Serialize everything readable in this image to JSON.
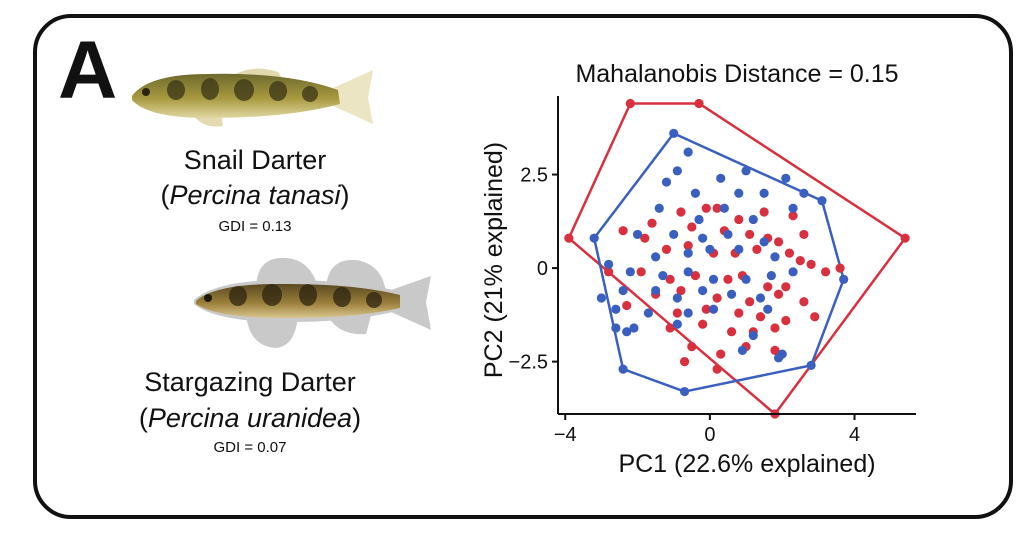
{
  "panel": {
    "label": "A"
  },
  "species": [
    {
      "common_name": "Snail Darter",
      "scientific_name": "Percina tanasi",
      "gdi": "GDI = 0.13"
    },
    {
      "common_name": "Stargazing Darter",
      "scientific_name": "Percina uranidea",
      "gdi": "GDI = 0.07"
    }
  ],
  "colors": {
    "snail": "#d8303f",
    "stargazing": "#3a5fbf"
  },
  "chart_data": {
    "type": "scatter",
    "title": "Mahalanobis Distance = 0.15",
    "xlabel": "PC1 (22.6% explained)",
    "ylabel": "PC2 (21% explained)",
    "xlim": [
      -4.2,
      5.7
    ],
    "ylim": [
      -3.9,
      4.6
    ],
    "x_ticks": [
      -4,
      0,
      4
    ],
    "x_tick_labels": [
      "−4",
      "0",
      "4"
    ],
    "y_ticks": [
      2.5,
      0,
      -2.5
    ],
    "y_tick_labels": [
      "2.5",
      "0",
      "−2.5"
    ],
    "grid": false,
    "series": [
      {
        "name": "Snail Darter",
        "color": "#d8303f",
        "hull": [
          [
            -2.2,
            4.4
          ],
          [
            -0.3,
            4.4
          ],
          [
            5.4,
            0.8
          ],
          [
            1.8,
            -3.9
          ],
          [
            -3.9,
            0.8
          ]
        ],
        "points": [
          [
            -2.2,
            4.4
          ],
          [
            -0.3,
            4.4
          ],
          [
            5.4,
            0.8
          ],
          [
            1.8,
            -3.9
          ],
          [
            -3.9,
            0.8
          ],
          [
            -0.8,
            1.5
          ],
          [
            -0.1,
            1.6
          ],
          [
            0.2,
            1.6
          ],
          [
            0.8,
            1.3
          ],
          [
            1.5,
            1.5
          ],
          [
            2.3,
            1.4
          ],
          [
            -1.6,
            1.2
          ],
          [
            -2.4,
            1.0
          ],
          [
            -1.8,
            0.8
          ],
          [
            -0.5,
            1.1
          ],
          [
            0.4,
            1.0
          ],
          [
            1.1,
            0.9
          ],
          [
            1.6,
            0.8
          ],
          [
            1.9,
            0.7
          ],
          [
            2.6,
            0.9
          ],
          [
            -1.2,
            0.5
          ],
          [
            -0.6,
            0.6
          ],
          [
            0.1,
            0.4
          ],
          [
            0.7,
            0.4
          ],
          [
            1.3,
            0.5
          ],
          [
            2.2,
            0.4
          ],
          [
            2.5,
            0.2
          ],
          [
            2.8,
            0.1
          ],
          [
            3.2,
            -0.1
          ],
          [
            3.6,
            0.0
          ],
          [
            -2.8,
            -0.1
          ],
          [
            -1.9,
            -0.1
          ],
          [
            -1.1,
            -0.3
          ],
          [
            -0.4,
            -0.2
          ],
          [
            0.5,
            -0.3
          ],
          [
            0.9,
            -0.2
          ],
          [
            1.6,
            -0.5
          ],
          [
            2.1,
            -0.5
          ],
          [
            -1.5,
            -0.7
          ],
          [
            -0.8,
            -0.6
          ],
          [
            0.2,
            -0.8
          ],
          [
            1.1,
            -0.9
          ],
          [
            1.9,
            -0.7
          ],
          [
            2.6,
            -0.9
          ],
          [
            -2.3,
            -1.0
          ],
          [
            -0.9,
            -1.2
          ],
          [
            -0.1,
            -1.1
          ],
          [
            0.8,
            -1.2
          ],
          [
            1.4,
            -1.3
          ],
          [
            2.1,
            -1.4
          ],
          [
            2.9,
            -1.3
          ],
          [
            -1.1,
            -1.6
          ],
          [
            -0.2,
            -1.5
          ],
          [
            0.6,
            -1.7
          ],
          [
            1.2,
            -1.7
          ],
          [
            1.8,
            -1.6
          ],
          [
            -0.5,
            -2.1
          ],
          [
            0.3,
            -2.3
          ],
          [
            1.0,
            -2.1
          ],
          [
            1.8,
            -2.2
          ],
          [
            0.2,
            -2.7
          ],
          [
            -0.7,
            -2.5
          ]
        ]
      },
      {
        "name": "Stargazing Darter",
        "color": "#3a5fbf",
        "hull": [
          [
            -1.0,
            3.6
          ],
          [
            3.1,
            1.8
          ],
          [
            3.7,
            -0.3
          ],
          [
            2.8,
            -2.6
          ],
          [
            -0.7,
            -3.3
          ],
          [
            -2.4,
            -2.7
          ],
          [
            -3.2,
            0.8
          ]
        ],
        "points": [
          [
            -1.0,
            3.6
          ],
          [
            3.1,
            1.8
          ],
          [
            3.7,
            -0.3
          ],
          [
            2.8,
            -2.6
          ],
          [
            -0.7,
            -3.3
          ],
          [
            -2.4,
            -2.7
          ],
          [
            -3.2,
            0.8
          ],
          [
            -0.6,
            3.1
          ],
          [
            -0.9,
            2.6
          ],
          [
            0.3,
            2.4
          ],
          [
            1.0,
            2.6
          ],
          [
            -1.2,
            2.3
          ],
          [
            -0.4,
            2.0
          ],
          [
            0.8,
            2.0
          ],
          [
            1.5,
            2.0
          ],
          [
            2.1,
            2.4
          ],
          [
            2.6,
            2.0
          ],
          [
            -1.4,
            1.6
          ],
          [
            -0.3,
            1.3
          ],
          [
            0.4,
            1.6
          ],
          [
            1.2,
            1.3
          ],
          [
            2.3,
            1.6
          ],
          [
            -2.0,
            0.9
          ],
          [
            -1.0,
            0.9
          ],
          [
            -0.2,
            0.8
          ],
          [
            0.5,
            0.9
          ],
          [
            1.5,
            0.7
          ],
          [
            -2.8,
            0.1
          ],
          [
            -1.5,
            0.3
          ],
          [
            -0.6,
            0.4
          ],
          [
            0.0,
            0.5
          ],
          [
            0.8,
            0.5
          ],
          [
            1.8,
            0.3
          ],
          [
            -2.2,
            -0.1
          ],
          [
            -1.3,
            -0.2
          ],
          [
            -0.6,
            -0.1
          ],
          [
            0.1,
            -0.3
          ],
          [
            1.0,
            -0.3
          ],
          [
            1.7,
            -0.2
          ],
          [
            2.3,
            -0.1
          ],
          [
            -3.0,
            -0.8
          ],
          [
            -2.4,
            -0.6
          ],
          [
            -1.5,
            -0.6
          ],
          [
            -0.9,
            -0.8
          ],
          [
            -0.2,
            -0.6
          ],
          [
            0.6,
            -0.7
          ],
          [
            1.4,
            -0.8
          ],
          [
            -2.6,
            -1.1
          ],
          [
            -1.7,
            -1.2
          ],
          [
            -0.6,
            -1.2
          ],
          [
            0.1,
            -1.1
          ],
          [
            1.6,
            -1.1
          ],
          [
            -2.1,
            -1.6
          ],
          [
            -2.3,
            -1.7
          ],
          [
            -2.6,
            -1.6
          ],
          [
            -0.9,
            -1.5
          ],
          [
            1.2,
            -1.8
          ],
          [
            0.9,
            -2.2
          ],
          [
            2.0,
            -2.3
          ],
          [
            1.9,
            -2.4
          ]
        ]
      }
    ]
  }
}
